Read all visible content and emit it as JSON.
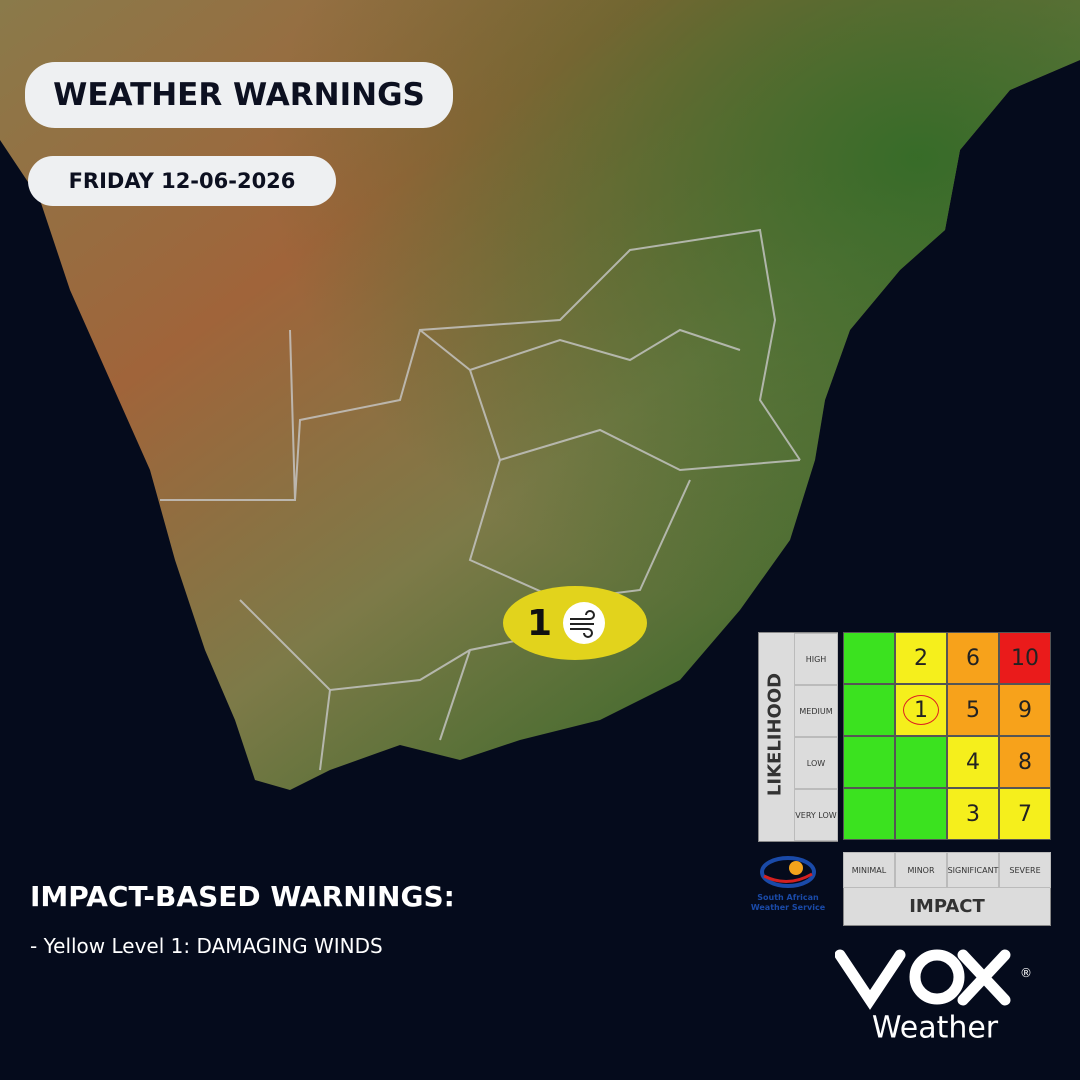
{
  "header": {
    "title": "WEATHER WARNINGS",
    "date": "FRIDAY 12-06-2026"
  },
  "map": {
    "marker": {
      "level": 1,
      "color": "#e2d31c"
    }
  },
  "matrix": {
    "likelihood_title": "LIKELIHOOD",
    "impact_title": "IMPACT",
    "impact_labels": [
      "MINIMAL",
      "MINOR",
      "SIGNIFICANT",
      "SEVERE"
    ],
    "rows": [
      {
        "label": "HIGH",
        "cells": [
          {
            "color": "#3be21f"
          },
          {
            "color": "#f5ef1c",
            "level": 2
          },
          {
            "color": "#f7a21b",
            "level": 6
          },
          {
            "color": "#ea1b1b",
            "level": 10
          }
        ]
      },
      {
        "label": "MEDIUM",
        "cells": [
          {
            "color": "#3be21f"
          },
          {
            "color": "#f5ef1c",
            "level": 1,
            "circled": true
          },
          {
            "color": "#f7a21b",
            "level": 5
          },
          {
            "color": "#f7a21b",
            "level": 9
          }
        ]
      },
      {
        "label": "LOW",
        "cells": [
          {
            "color": "#3be21f"
          },
          {
            "color": "#3be21f"
          },
          {
            "color": "#f5ef1c",
            "level": 4
          },
          {
            "color": "#f7a21b",
            "level": 8
          }
        ]
      },
      {
        "label": "VERY LOW",
        "cells": [
          {
            "color": "#3be21f"
          },
          {
            "color": "#3be21f"
          },
          {
            "color": "#f5ef1c",
            "level": 3
          },
          {
            "color": "#f5ef1c",
            "level": 7
          }
        ]
      }
    ]
  },
  "warnings": {
    "heading": "IMPACT-BASED WARNINGS:",
    "items": [
      "- Yellow Level 1: DAMAGING WINDS"
    ]
  },
  "logos": {
    "saws": "South African Weather Service",
    "brand": "Weather",
    "registered": "®"
  }
}
